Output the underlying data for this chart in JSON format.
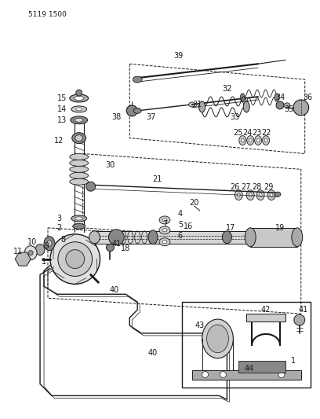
{
  "header_text": "5119 1500",
  "bg_color": "#ffffff",
  "line_color": "#1a1a1a",
  "fig_width": 4.08,
  "fig_height": 5.33,
  "dpi": 100
}
